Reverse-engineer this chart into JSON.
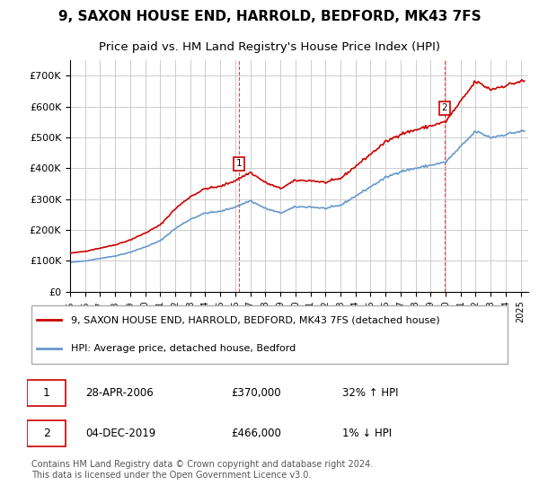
{
  "title": "9, SAXON HOUSE END, HARROLD, BEDFORD, MK43 7FS",
  "subtitle": "Price paid vs. HM Land Registry's House Price Index (HPI)",
  "footer": "Contains HM Land Registry data © Crown copyright and database right 2024.\nThis data is licensed under the Open Government Licence v3.0.",
  "legend_label_red": "9, SAXON HOUSE END, HARROLD, BEDFORD, MK43 7FS (detached house)",
  "legend_label_blue": "HPI: Average price, detached house, Bedford",
  "annotation1_label": "1",
  "annotation1_date": "28-APR-2006",
  "annotation1_price": "£370,000",
  "annotation1_hpi": "32% ↑ HPI",
  "annotation2_label": "2",
  "annotation2_date": "04-DEC-2019",
  "annotation2_price": "£466,000",
  "annotation2_hpi": "1% ↓ HPI",
  "color_red": "#cc0000",
  "color_blue": "#6699cc",
  "ylim_min": 0,
  "ylim_max": 750000,
  "plot_bg_color": "#ffffff",
  "grid_color": "#cccccc"
}
